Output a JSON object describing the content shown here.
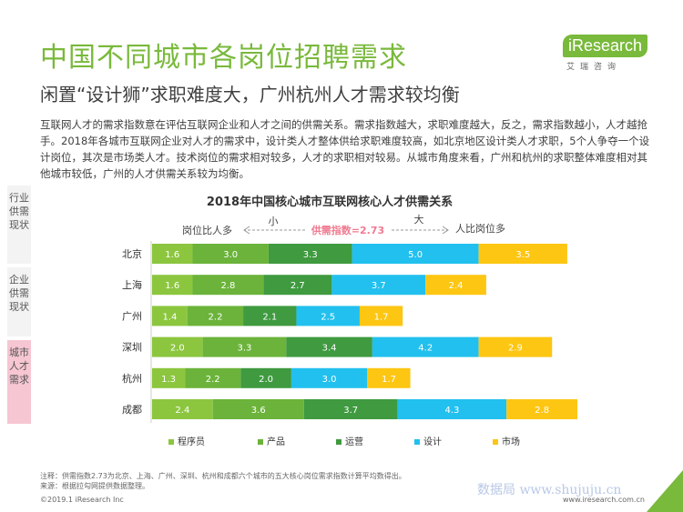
{
  "header": {
    "title": "中国不同城市各岗位招聘需求",
    "subtitle": "闲置“设计狮”求职难度大，广州杭州人才需求较均衡"
  },
  "logo": {
    "brand": "iResearch",
    "cn": "艾瑞咨询"
  },
  "description": "互联网人才的需求指数意在评估互联网企业和人才之间的供需关系。需求指数越大，求职难度越大，反之，需求指数越小，人才越抢手。2018年各城市互联网企业对人才的需求中，设计类人才整体供给求职难度较高，如北京地区设计类人才求职，5个人争夺一个设计岗位，其次是市场类人才。技术岗位的需求相对较多，人才的求职相对较易。从城市角度来看，广州和杭州的求职整体难度相对其他城市较低，广州的人才供需关系较为均衡。",
  "sidebar": {
    "tabs": [
      "行业供需现状",
      "企业供需现状",
      "城市人才需求"
    ]
  },
  "chart_data": {
    "type": "bar",
    "orientation": "horizontal",
    "stacked": true,
    "title": "2018年中国核心城市互联网核心人才供需关系",
    "scale_note": {
      "left_label": "岗位比人多",
      "small": "小",
      "center_label": "供需指数=2.73",
      "large": "大",
      "right_label": "人比岗位多"
    },
    "categories": [
      "北京",
      "上海",
      "广州",
      "深圳",
      "杭州",
      "成都"
    ],
    "series": [
      {
        "name": "程序员",
        "color": "#8cc63f",
        "values": [
          1.6,
          1.6,
          1.4,
          2.0,
          1.3,
          2.4
        ]
      },
      {
        "name": "产品",
        "color": "#6bb33a",
        "values": [
          3.0,
          2.8,
          2.2,
          3.3,
          2.2,
          3.6
        ]
      },
      {
        "name": "运营",
        "color": "#3f9a40",
        "values": [
          3.3,
          2.7,
          2.1,
          3.4,
          2.0,
          3.7
        ]
      },
      {
        "name": "设计",
        "color": "#22c0ee",
        "values": [
          5.0,
          3.7,
          2.5,
          4.2,
          3.0,
          4.3
        ]
      },
      {
        "name": "市场",
        "color": "#fdc613",
        "values": [
          3.5,
          2.4,
          1.7,
          2.9,
          1.7,
          2.8
        ]
      }
    ],
    "legend": "bottom",
    "grid": false
  },
  "footer": {
    "note": "注释：供需指数2.73为北京、上海、广州、深圳、杭州和成都六个城市的五大核心岗位需求指数计算平均数得出。",
    "source": "来源：根据拉勾网提供数据整理。",
    "copyright": "©2019.1 iResearch Inc",
    "watermark": "数据局 www.shujuju.cn",
    "website": "www.iresearch.com.cn",
    "page": "17"
  }
}
